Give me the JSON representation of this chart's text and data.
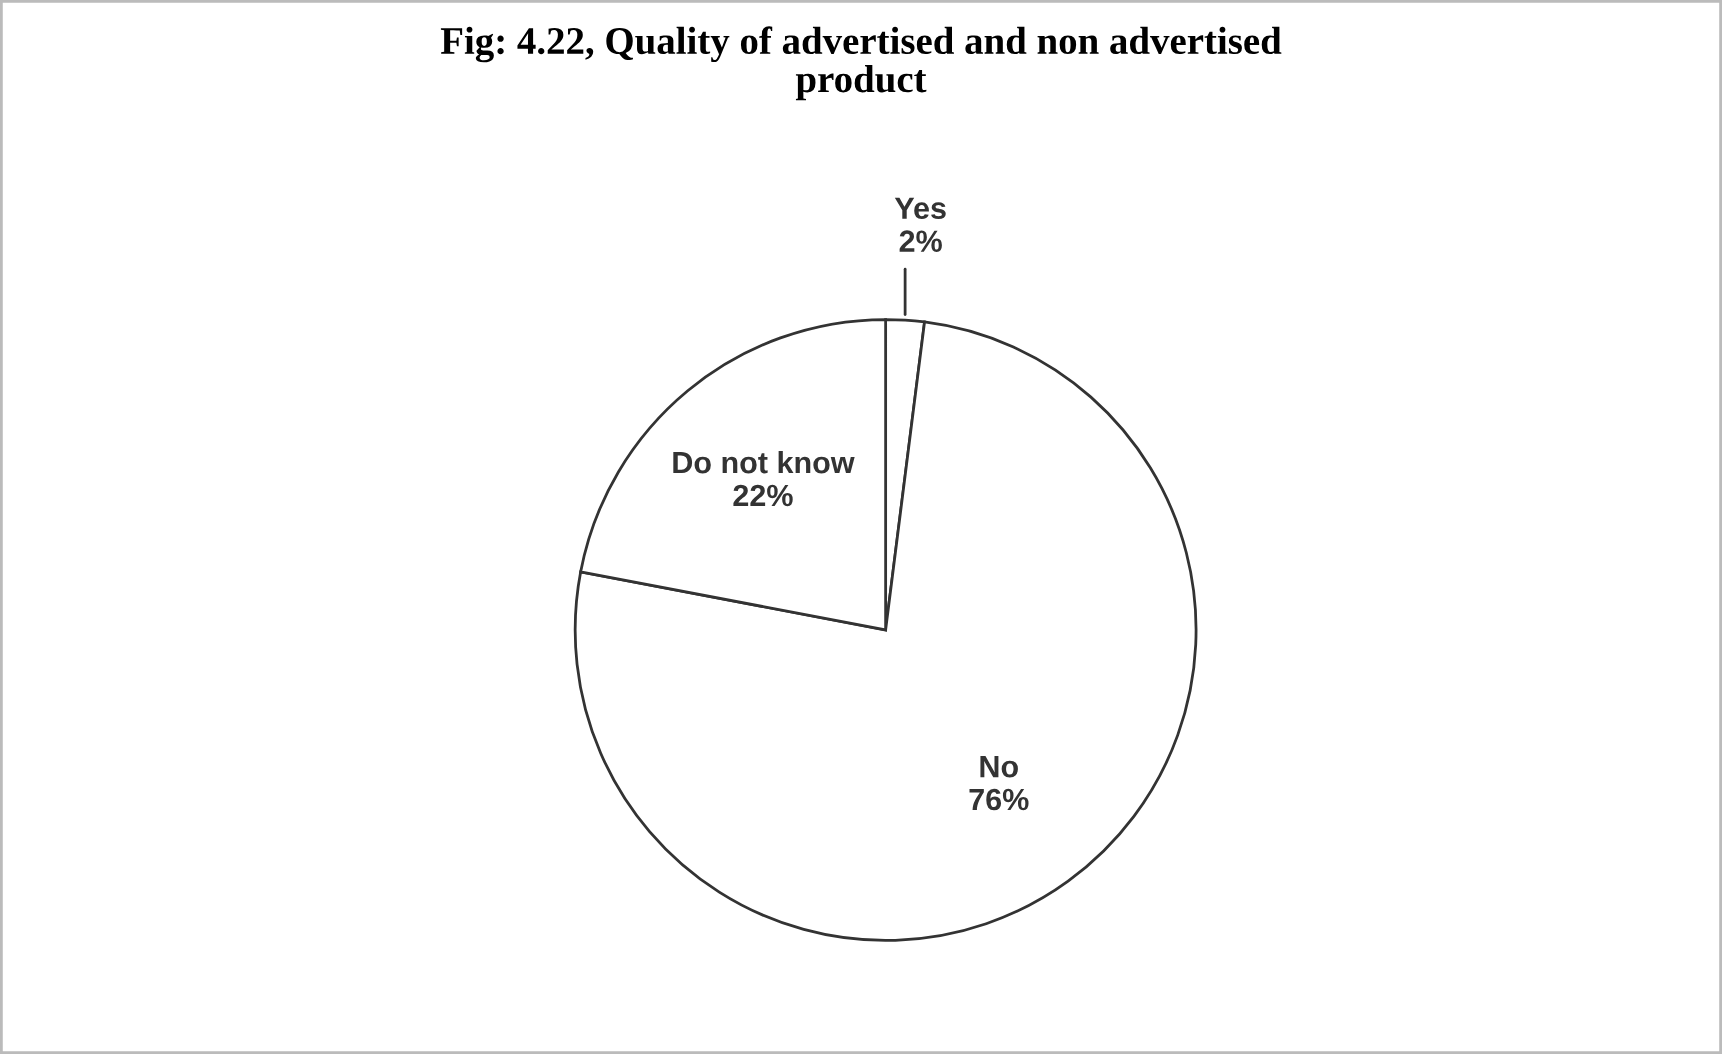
{
  "chart_data": {
    "type": "pie",
    "title": "Fig: 4.22, Quality of advertised and non advertised\nproduct",
    "categories": [
      "Yes",
      "No",
      "Do not know"
    ],
    "values": [
      2,
      76,
      22
    ],
    "colors": [
      "#ffffff",
      "#ffffff",
      "#ffffff"
    ],
    "value_labels": [
      "2%",
      "76%",
      "22%"
    ],
    "legend": false
  }
}
